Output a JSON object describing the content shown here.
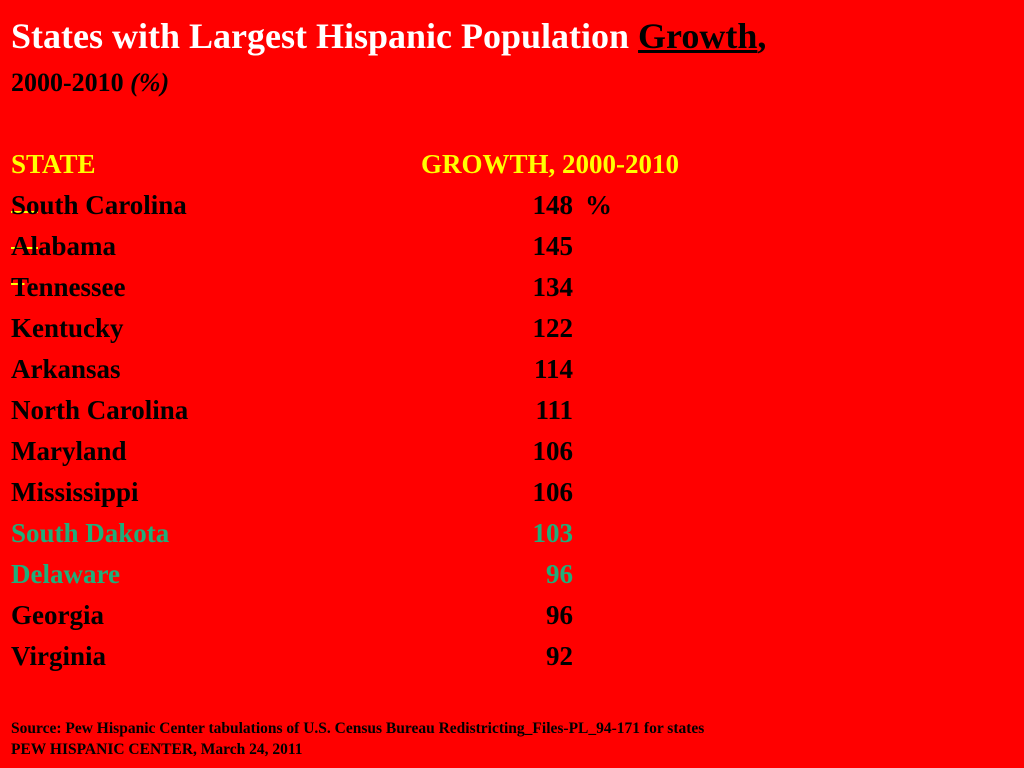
{
  "title": {
    "prefix": "States with Largest Hispanic Population ",
    "emphasis": "Growth",
    "suffix": ",",
    "subtitle_years": "2000-2010 ",
    "subtitle_unit": "(%)"
  },
  "table": {
    "header_state": "STATE",
    "header_growth": "GROWTH, 2000-2010 ",
    "rows": [
      {
        "state": "South Carolina",
        "value": "148",
        "suffix": " %",
        "highlight": false
      },
      {
        "state": "Alabama",
        "value": "145",
        "suffix": "",
        "highlight": false
      },
      {
        "state": "Tennessee",
        "value": "134",
        "suffix": "",
        "highlight": false
      },
      {
        "state": "Kentucky",
        "value": "122",
        "suffix": "",
        "highlight": false
      },
      {
        "state": "Arkansas",
        "value": "114",
        "suffix": "",
        "highlight": false
      },
      {
        "state": "North Carolina",
        "value": "111",
        "suffix": "",
        "highlight": false
      },
      {
        "state": "Maryland",
        "value": "106",
        "suffix": "",
        "highlight": false
      },
      {
        "state": "Mississippi",
        "value": "106",
        "suffix": "",
        "highlight": false
      },
      {
        "state": "South Dakota",
        "value": "103",
        "suffix": "",
        "highlight": true
      },
      {
        "state": "Delaware",
        "value": "96",
        "suffix": "",
        "highlight": true
      },
      {
        "state": "Georgia",
        "value": "96",
        "suffix": "",
        "highlight": false
      },
      {
        "state": "Virginia",
        "value": "92",
        "suffix": "",
        "highlight": false
      }
    ]
  },
  "footer": {
    "source": "Source: Pew Hispanic Center tabulations of U.S. Census Bureau Redistricting_Files-PL_94-171 for states",
    "credit": "PEW HISPANIC CENTER, March 24, 2011"
  },
  "colors": {
    "background": "#ff0000",
    "title": "#ffffff",
    "header": "#ffff00",
    "text": "#000000",
    "highlight": "#1fae7a"
  }
}
